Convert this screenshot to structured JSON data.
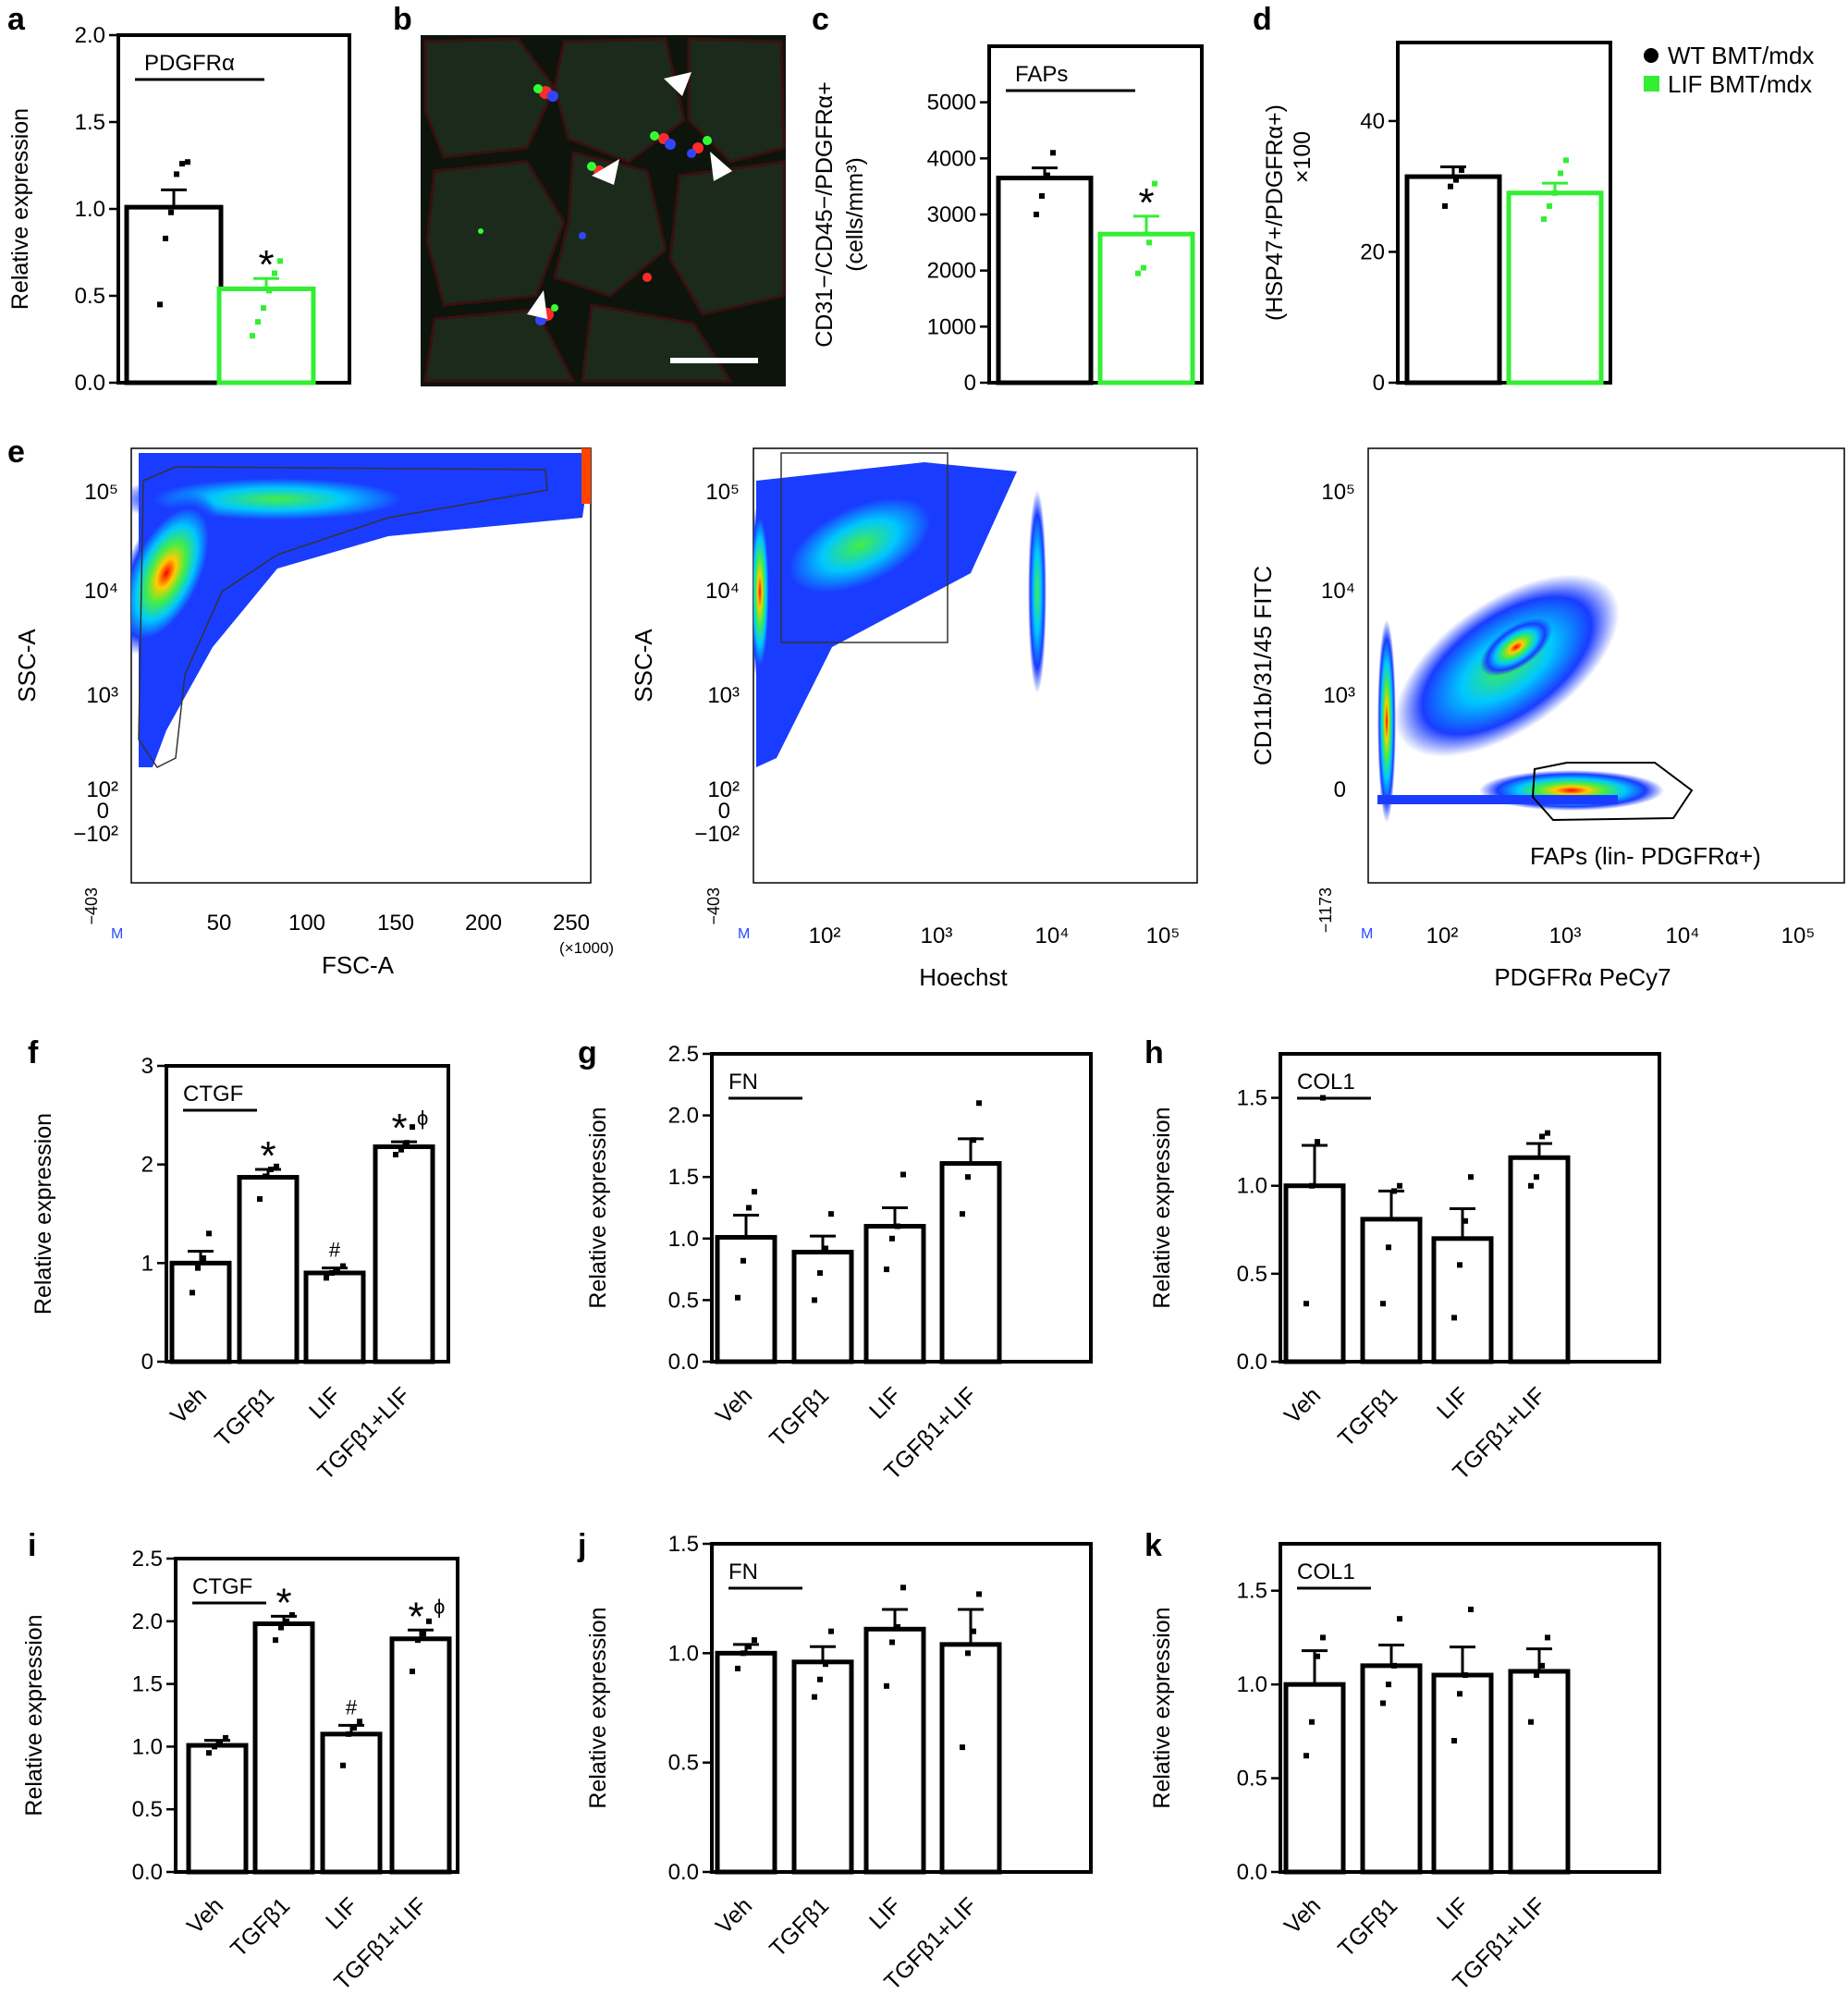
{
  "colors": {
    "black": "#000000",
    "green": "#33ee33",
    "flowBlue": "#2a4bff",
    "scaleBar": "#ffffff"
  },
  "legend": {
    "entries": [
      {
        "label": "WT BMT/mdx",
        "marker": "circle"
      },
      {
        "label": "LIF BMT/mdx",
        "marker": "square"
      }
    ]
  },
  "chart_data": [
    {
      "id": "a",
      "letter": "a",
      "type": "bar",
      "ylabel": "Relative expression",
      "box_label": "PDGFRα",
      "ylim": [
        0,
        2.0
      ],
      "yticks": [
        0.0,
        0.5,
        1.0,
        1.5,
        2.0
      ],
      "tick_labels": [
        "0.0",
        "0.5",
        "1.0",
        "1.5",
        "2.0"
      ],
      "categories": [
        "WT BMT/mdx",
        "LIF BMT/mdx"
      ],
      "values": [
        1.01,
        0.54
      ],
      "errors": [
        0.1,
        0.06
      ],
      "points": [
        [
          0.45,
          0.83,
          0.98,
          1.2,
          1.26,
          1.27
        ],
        [
          0.27,
          0.35,
          0.43,
          0.53,
          0.63,
          0.7
        ]
      ],
      "marks": [
        "",
        "*"
      ]
    },
    {
      "id": "c",
      "letter": "c",
      "type": "bar",
      "ylabel": "CD31−/CD45−/PDGFRα+ (cells/mm³)",
      "box_label": "FAPs",
      "ylim": [
        0,
        6000
      ],
      "yticks": [
        0,
        1000,
        2000,
        3000,
        4000,
        5000
      ],
      "tick_labels": [
        "0",
        "1000",
        "2000",
        "3000",
        "4000",
        "5000"
      ],
      "categories": [
        "WT BMT/mdx",
        "LIF BMT/mdx"
      ],
      "values": [
        3650,
        2650
      ],
      "errors": [
        180,
        320
      ],
      "points": [
        [
          3000,
          3330,
          3700,
          4100
        ],
        [
          1950,
          2050,
          2500,
          3550
        ]
      ],
      "marks": [
        "",
        "*"
      ]
    },
    {
      "id": "d",
      "letter": "d",
      "type": "bar",
      "ylabel": "(HSP47+/PDGFRα+) ×100",
      "box_label": "",
      "ylim": [
        0,
        52
      ],
      "yticks": [
        0,
        20,
        40
      ],
      "tick_labels": [
        "0",
        "20",
        "40"
      ],
      "categories": [
        "WT BMT/mdx",
        "LIF BMT/mdx"
      ],
      "values": [
        31.5,
        29
      ],
      "errors": [
        1.5,
        1.5
      ],
      "points": [
        [
          27,
          30,
          31,
          32.5
        ],
        [
          25,
          27,
          29,
          32,
          34
        ]
      ],
      "marks": [
        "",
        ""
      ]
    },
    {
      "id": "f",
      "letter": "f",
      "type": "bar",
      "ylabel": "Relative expression",
      "box_label": "CTGF",
      "ylim": [
        0,
        3
      ],
      "yticks": [
        0,
        1,
        2,
        3
      ],
      "tick_labels": [
        "0",
        "1",
        "2",
        "3"
      ],
      "categories": [
        "Veh",
        "TGFβ1",
        "LIF",
        "TGFβ1+LIF"
      ],
      "values": [
        1.0,
        1.87,
        0.9,
        2.18
      ],
      "errors": [
        0.12,
        0.08,
        0.05,
        0.05
      ],
      "points": [
        [
          0.7,
          0.95,
          1.05,
          1.3
        ],
        [
          1.65,
          1.88,
          1.95,
          1.98
        ],
        [
          0.85,
          0.9,
          0.93,
          0.97
        ],
        [
          2.1,
          2.15,
          2.22,
          2.38
        ]
      ],
      "marks": [
        "",
        "*",
        "#",
        "*ϕ"
      ]
    },
    {
      "id": "g",
      "letter": "g",
      "type": "bar",
      "ylabel": "Relative expression",
      "box_label": "FN",
      "ylim": [
        0,
        2.5
      ],
      "yticks": [
        0.0,
        0.5,
        1.0,
        1.5,
        2.0,
        2.5
      ],
      "tick_labels": [
        "0.0",
        "0.5",
        "1.0",
        "1.5",
        "2.0",
        "2.5"
      ],
      "categories": [
        "Veh",
        "TGFβ1",
        "LIF",
        "TGFβ1+LIF"
      ],
      "values": [
        1.01,
        0.89,
        1.1,
        1.61
      ],
      "errors": [
        0.18,
        0.13,
        0.15,
        0.2
      ],
      "points": [
        [
          0.52,
          0.82,
          1.25,
          1.38
        ],
        [
          0.5,
          0.72,
          0.92,
          1.2
        ],
        [
          0.75,
          1.0,
          1.1,
          1.52
        ],
        [
          1.2,
          1.5,
          1.8,
          2.1
        ]
      ],
      "marks": [
        "",
        "",
        "",
        ""
      ]
    },
    {
      "id": "h",
      "letter": "h",
      "type": "bar",
      "ylabel": "Relative expression",
      "box_label": "COL1",
      "ylim": [
        0,
        1.75
      ],
      "yticks": [
        0.0,
        0.5,
        1.0,
        1.5
      ],
      "tick_labels": [
        "0.0",
        "0.5",
        "1.0",
        "1.5"
      ],
      "categories": [
        "Veh",
        "TGFβ1",
        "LIF",
        "TGFβ1+LIF"
      ],
      "values": [
        1.0,
        0.81,
        0.7,
        1.16
      ],
      "errors": [
        0.23,
        0.16,
        0.17,
        0.08
      ],
      "points": [
        [
          0.33,
          1.0,
          1.25,
          1.5
        ],
        [
          0.33,
          0.65,
          0.97,
          1.0
        ],
        [
          0.25,
          0.55,
          0.8,
          1.05
        ],
        [
          1.0,
          1.05,
          1.28,
          1.3
        ]
      ],
      "marks": [
        "",
        "",
        "",
        ""
      ]
    },
    {
      "id": "i",
      "letter": "i",
      "type": "bar",
      "ylabel": "Relative expression",
      "box_label": "CTGF",
      "ylim": [
        0,
        2.5
      ],
      "yticks": [
        0.0,
        0.5,
        1.0,
        1.5,
        2.0,
        2.5
      ],
      "tick_labels": [
        "0.0",
        "0.5",
        "1.0",
        "1.5",
        "2.0",
        "2.5"
      ],
      "categories": [
        "Veh",
        "TGFβ1",
        "LIF",
        "TGFβ1+LIF"
      ],
      "values": [
        1.01,
        1.98,
        1.1,
        1.86
      ],
      "errors": [
        0.04,
        0.06,
        0.07,
        0.07
      ],
      "points": [
        [
          0.95,
          1.0,
          1.03,
          1.07
        ],
        [
          1.85,
          1.95,
          2.0,
          2.05
        ],
        [
          0.85,
          1.1,
          1.15,
          1.2
        ],
        [
          1.6,
          1.85,
          1.9,
          2.0
        ]
      ],
      "marks": [
        "",
        "*",
        "#",
        "*ϕ"
      ]
    },
    {
      "id": "j",
      "letter": "j",
      "type": "bar",
      "ylabel": "Relative expression",
      "box_label": "FN",
      "ylim": [
        0,
        1.5
      ],
      "yticks": [
        0.0,
        0.5,
        1.0,
        1.5
      ],
      "tick_labels": [
        "0.0",
        "0.5",
        "1.0",
        "1.5"
      ],
      "categories": [
        "Veh",
        "TGFβ1",
        "LIF",
        "TGFβ1+LIF"
      ],
      "values": [
        1.0,
        0.96,
        1.11,
        1.04
      ],
      "errors": [
        0.04,
        0.07,
        0.09,
        0.16
      ],
      "points": [
        [
          0.93,
          1.0,
          1.03,
          1.06
        ],
        [
          0.8,
          0.88,
          0.95,
          1.1
        ],
        [
          0.85,
          1.05,
          1.12,
          1.3
        ],
        [
          0.57,
          1.0,
          1.1,
          1.27
        ]
      ],
      "marks": [
        "",
        "",
        "",
        ""
      ]
    },
    {
      "id": "k",
      "letter": "k",
      "type": "bar",
      "ylabel": "Relative expression",
      "box_label": "COL1",
      "ylim": [
        0,
        1.75
      ],
      "yticks": [
        0.0,
        0.5,
        1.0,
        1.5
      ],
      "tick_labels": [
        "0.0",
        "0.5",
        "1.0",
        "1.5"
      ],
      "categories": [
        "Veh",
        "TGFβ1",
        "LIF",
        "TGFβ1+LIF"
      ],
      "values": [
        1.0,
        1.1,
        1.05,
        1.07
      ],
      "errors": [
        0.18,
        0.11,
        0.15,
        0.12
      ],
      "points": [
        [
          0.62,
          0.8,
          1.15,
          1.25
        ],
        [
          0.9,
          1.0,
          1.1,
          1.35
        ],
        [
          0.7,
          0.95,
          1.05,
          1.4
        ],
        [
          0.8,
          1.05,
          1.1,
          1.25
        ]
      ],
      "marks": [
        "",
        "",
        "",
        ""
      ]
    },
    {
      "id": "e1",
      "type": "scatter",
      "subtype": "flow cytometry density",
      "xlabel": "FSC-A",
      "ylabel": "SSC-A",
      "x_ticks": [
        "50",
        "100",
        "150",
        "200",
        "250"
      ],
      "x_tick_values": [
        50,
        100,
        150,
        200,
        250
      ],
      "x_multiplier": "(×1000)",
      "x_min_label": "M",
      "y_ticks": [
        "10⁵",
        "10⁴",
        "10³",
        "10²",
        "0",
        "−10²",
        "−403"
      ]
    },
    {
      "id": "e2",
      "type": "scatter",
      "subtype": "flow cytometry density",
      "xlabel": "Hoechst",
      "ylabel": "SSC-A",
      "x_ticks": [
        "10²",
        "10³",
        "10⁴",
        "10⁵"
      ],
      "x_min_label": "M",
      "y_ticks": [
        "10⁵",
        "10⁴",
        "10³",
        "10²",
        "0",
        "−10²",
        "−403"
      ]
    },
    {
      "id": "e3",
      "type": "scatter",
      "subtype": "flow cytometry density",
      "xlabel": "PDGFRα PeCy7",
      "ylabel": "CD11b/31/45 FITC",
      "x_ticks": [
        "10²",
        "10³",
        "10⁴",
        "10⁵"
      ],
      "x_min_label": "M",
      "y_ticks": [
        "10⁵",
        "10⁴",
        "10³",
        "0",
        "−1173"
      ],
      "gate_label": "FAPs (lin- PDGFRα+)"
    }
  ],
  "panel_letters": {
    "a": "a",
    "b": "b",
    "c": "c",
    "d": "d",
    "e": "e",
    "f": "f",
    "g": "g",
    "h": "h",
    "i": "i",
    "j": "j",
    "k": "k"
  }
}
